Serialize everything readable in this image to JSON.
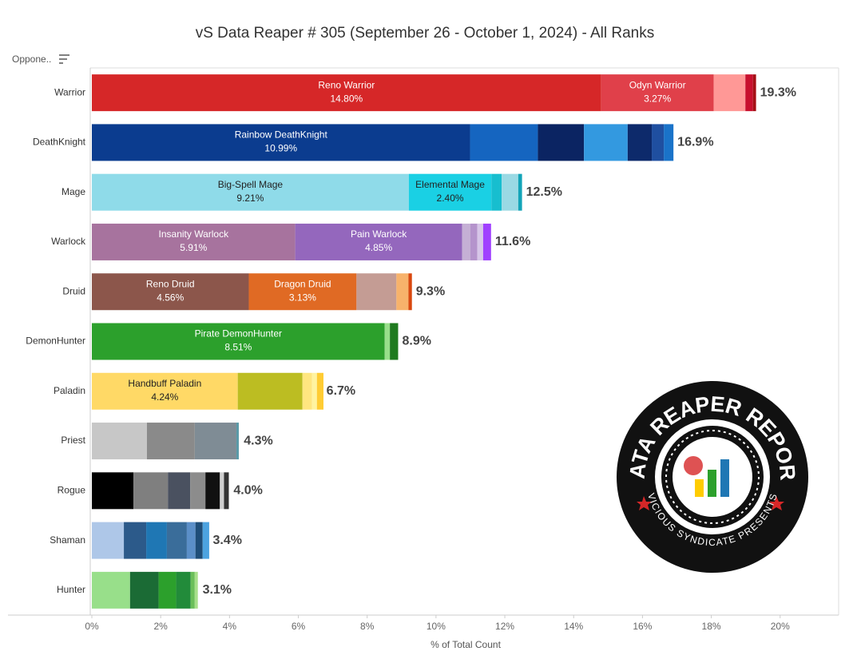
{
  "chart_data": {
    "type": "bar",
    "orientation": "horizontal",
    "stacked": true,
    "title": "vS Data Reaper # 305 (September 26 - October 1, 2024) - All Ranks",
    "y_header": "Oppone..",
    "xlabel": "% of Total Count",
    "xlim": [
      0,
      21.7
    ],
    "xticks": [
      {
        "value": 0,
        "label": "0%"
      },
      {
        "value": 2,
        "label": "2%"
      },
      {
        "value": 4,
        "label": "4%"
      },
      {
        "value": 6,
        "label": "6%"
      },
      {
        "value": 8,
        "label": "8%"
      },
      {
        "value": 10,
        "label": "10%"
      },
      {
        "value": 12,
        "label": "12%"
      },
      {
        "value": 14,
        "label": "14%"
      },
      {
        "value": 16,
        "label": "16%"
      },
      {
        "value": 18,
        "label": "18%"
      },
      {
        "value": 20,
        "label": "20%"
      }
    ],
    "bars": [
      {
        "category": "Warrior",
        "total": 19.3,
        "total_label": "19.3%",
        "segments": [
          {
            "name": "Reno Warrior",
            "value": 14.8,
            "value_label": "14.80%",
            "color": "#d62728",
            "text_color": "#ffffff"
          },
          {
            "name": "Odyn Warrior",
            "value": 3.27,
            "value_label": "3.27%",
            "color": "#e0404a",
            "text_color": "#ffffff"
          },
          {
            "value": 0.92,
            "color": "#ff9896"
          },
          {
            "value": 0.22,
            "color": "#c8102e"
          },
          {
            "value": 0.09,
            "color": "#a50f15"
          }
        ]
      },
      {
        "category": "DeathKnight",
        "total": 16.9,
        "total_label": "16.9%",
        "segments": [
          {
            "name": "Rainbow DeathKnight",
            "value": 10.99,
            "value_label": "10.99%",
            "color": "#0b3c8f",
            "text_color": "#ffffff"
          },
          {
            "value": 1.97,
            "color": "#1565c0"
          },
          {
            "value": 1.34,
            "color": "#0b2462"
          },
          {
            "value": 1.27,
            "color": "#3399e0"
          },
          {
            "value": 0.7,
            "color": "#0d2a6b"
          },
          {
            "value": 0.35,
            "color": "#1f4fa0"
          },
          {
            "value": 0.28,
            "color": "#1a73c9"
          }
        ]
      },
      {
        "category": "Mage",
        "total": 12.5,
        "total_label": "12.5%",
        "segments": [
          {
            "name": "Big-Spell Mage",
            "value": 9.21,
            "value_label": "9.21%",
            "color": "#8fdbe9",
            "text_color": "#222222"
          },
          {
            "name": "Elemental Mage",
            "value": 2.4,
            "value_label": "2.40%",
            "color": "#1ad0e4",
            "text_color": "#222222"
          },
          {
            "value": 0.3,
            "color": "#17becf"
          },
          {
            "value": 0.48,
            "color": "#9ad9e4"
          },
          {
            "value": 0.11,
            "color": "#12a4b8"
          }
        ]
      },
      {
        "category": "Warlock",
        "total": 11.6,
        "total_label": "11.6%",
        "segments": [
          {
            "name": "Insanity Warlock",
            "value": 5.91,
            "value_label": "5.91%",
            "color": "#a7739e",
            "text_color": "#ffffff"
          },
          {
            "name": "Pain Warlock",
            "value": 4.85,
            "value_label": "4.85%",
            "color": "#9467bd",
            "text_color": "#ffffff"
          },
          {
            "value": 0.24,
            "color": "#c5b0d5"
          },
          {
            "value": 0.2,
            "color": "#b594cc"
          },
          {
            "value": 0.17,
            "color": "#d7c6e8"
          },
          {
            "value": 0.23,
            "color": "#a040ff"
          }
        ]
      },
      {
        "category": "Druid",
        "total": 9.3,
        "total_label": "9.3%",
        "segments": [
          {
            "name": "Reno Druid",
            "value": 4.56,
            "value_label": "4.56%",
            "color": "#8c564b",
            "text_color": "#ffffff"
          },
          {
            "name": "Dragon Druid",
            "value": 3.13,
            "value_label": "3.13%",
            "color": "#e06a24",
            "text_color": "#ffffff"
          },
          {
            "value": 1.16,
            "color": "#c49c94"
          },
          {
            "value": 0.35,
            "color": "#f7b26b"
          },
          {
            "value": 0.1,
            "color": "#d9480f"
          }
        ]
      },
      {
        "category": "DemonHunter",
        "total": 8.9,
        "total_label": "8.9%",
        "segments": [
          {
            "name": "Pirate DemonHunter",
            "value": 8.51,
            "value_label": "8.51%",
            "color": "#2ca02c",
            "text_color": "#ffffff"
          },
          {
            "value": 0.15,
            "color": "#98df8a"
          },
          {
            "value": 0.24,
            "color": "#1f7a1f"
          }
        ]
      },
      {
        "category": "Paladin",
        "total": 6.7,
        "total_label": "6.7%",
        "segments": [
          {
            "name": "Handbuff Paladin",
            "value": 4.24,
            "value_label": "4.24%",
            "color": "#ffd966",
            "text_color": "#222222"
          },
          {
            "value": 1.88,
            "color": "#bcbd22"
          },
          {
            "value": 0.28,
            "color": "#ffe680"
          },
          {
            "value": 0.14,
            "color": "#fff3a0"
          },
          {
            "value": 0.19,
            "color": "#ffcc33"
          }
        ]
      },
      {
        "category": "Priest",
        "total": 4.3,
        "total_label": "4.3%",
        "segments": [
          {
            "value": 1.6,
            "color": "#c7c7c7"
          },
          {
            "value": 1.39,
            "color": "#8a8a8a"
          },
          {
            "value": 1.21,
            "color": "#7f8c95"
          },
          {
            "value": 0.07,
            "color": "#5a9aa8"
          }
        ]
      },
      {
        "category": "Rogue",
        "total": 4.0,
        "total_label": "4.0%",
        "segments": [
          {
            "value": 1.21,
            "color": "#000000"
          },
          {
            "value": 1.0,
            "color": "#7f7f7f"
          },
          {
            "value": 0.65,
            "color": "#4a5160"
          },
          {
            "value": 0.44,
            "color": "#8c8c8c"
          },
          {
            "value": 0.42,
            "color": "#111111"
          },
          {
            "value": 0.12,
            "color": "#cfcfcf"
          },
          {
            "value": 0.14,
            "color": "#333333"
          }
        ]
      },
      {
        "category": "Shaman",
        "total": 3.4,
        "total_label": "3.4%",
        "segments": [
          {
            "value": 0.93,
            "color": "#aec7e8"
          },
          {
            "value": 0.65,
            "color": "#2c5a8a"
          },
          {
            "value": 0.6,
            "color": "#1f77b4"
          },
          {
            "value": 0.58,
            "color": "#3a6d9a"
          },
          {
            "value": 0.25,
            "color": "#5b8fc8"
          },
          {
            "value": 0.21,
            "color": "#1f4e79"
          },
          {
            "value": 0.19,
            "color": "#4da3e0"
          }
        ]
      },
      {
        "category": "Hunter",
        "total": 3.1,
        "total_label": "3.1%",
        "segments": [
          {
            "value": 1.11,
            "color": "#98df8a"
          },
          {
            "value": 0.83,
            "color": "#1b6b35"
          },
          {
            "value": 0.51,
            "color": "#2ca02c"
          },
          {
            "value": 0.42,
            "color": "#228b3a"
          },
          {
            "value": 0.12,
            "color": "#6bbf59"
          },
          {
            "value": 0.09,
            "color": "#a8e08a"
          }
        ]
      }
    ]
  },
  "logo": {
    "top_text": "DATA REAPER REPORT",
    "bottom_text": "VICIOUS SYNDICATE PRESENTS"
  }
}
